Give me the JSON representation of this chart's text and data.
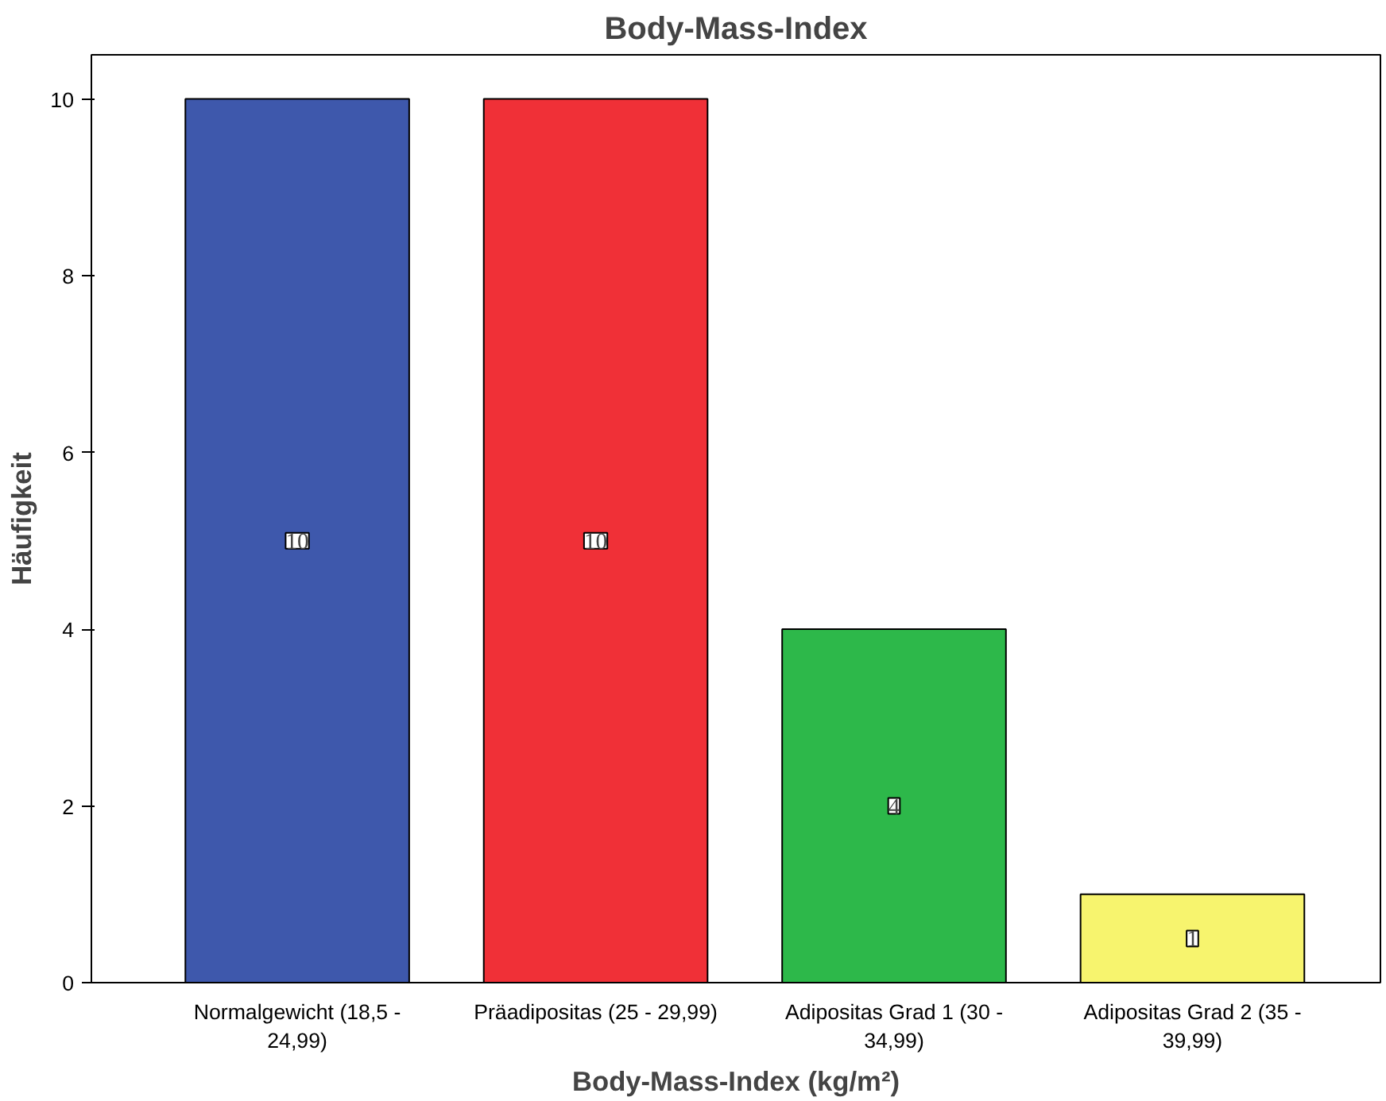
{
  "chart_data": {
    "type": "bar",
    "title": "Body-Mass-Index",
    "xlabel": "Body-Mass-Index (kg/m²)",
    "ylabel": "Häufigkeit",
    "categories": [
      "Normalgewicht (18,5 -\n24,99)",
      "Präadipositas (25 - 29,99)",
      "Adipositas Grad 1 (30 -\n34,99)",
      "Adipositas Grad 2 (35 -\n39,99)"
    ],
    "values": [
      10,
      10,
      4,
      1
    ],
    "colors": [
      "#3e58ac",
      "#f03037",
      "#2db84a",
      "#f7f46e"
    ],
    "ylim": [
      0,
      10.5
    ],
    "yticks": [
      0,
      2,
      4,
      6,
      8,
      10
    ],
    "grid": false,
    "data_labels": true
  }
}
